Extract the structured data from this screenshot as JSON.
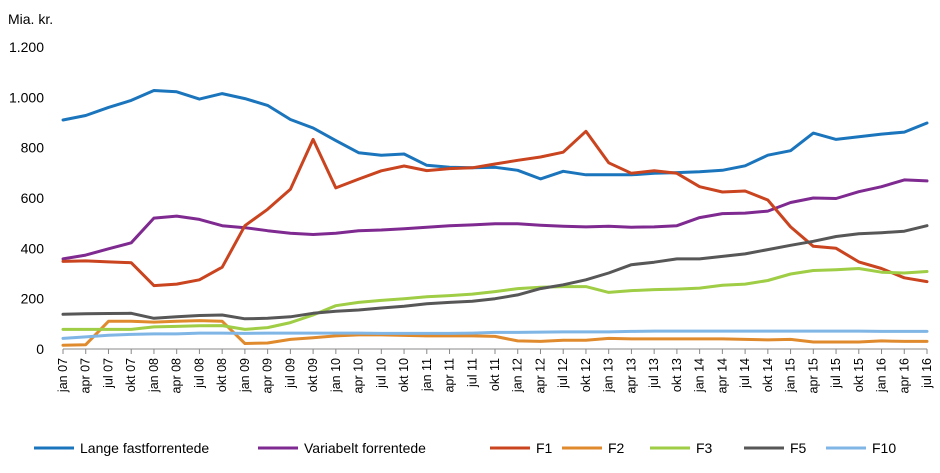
{
  "chart_data": {
    "type": "line",
    "unit_label": "Mia. kr.",
    "ylim": [
      0,
      1200
    ],
    "y_ticks": [
      {
        "value": 0,
        "label": "0"
      },
      {
        "value": 200,
        "label": "200"
      },
      {
        "value": 400,
        "label": "400"
      },
      {
        "value": 600,
        "label": "600"
      },
      {
        "value": 800,
        "label": "800"
      },
      {
        "value": 1000,
        "label": "1.000"
      },
      {
        "value": 1200,
        "label": "1.200"
      }
    ],
    "x": [
      "2007-01",
      "2007-04",
      "2007-07",
      "2007-10",
      "2008-01",
      "2008-04",
      "2008-07",
      "2008-10",
      "2009-01",
      "2009-04",
      "2009-07",
      "2009-10",
      "2010-01",
      "2010-04",
      "2010-07",
      "2010-10",
      "2011-01",
      "2011-04",
      "2011-07",
      "2011-10",
      "2012-01",
      "2012-04",
      "2012-07",
      "2012-10",
      "2013-01",
      "2013-04",
      "2013-07",
      "2013-10",
      "2014-01",
      "2014-04",
      "2014-07",
      "2014-10",
      "2015-01",
      "2015-04",
      "2015-07",
      "2015-10",
      "2016-01",
      "2016-04",
      "2016-07"
    ],
    "x_tick_labels": [
      "jan 07",
      "apr 07",
      "jul 07",
      "okt 07",
      "jan 08",
      "apr 08",
      "jul 08",
      "okt 08",
      "jan 09",
      "apr 09",
      "jul 09",
      "okt 09",
      "jan 10",
      "apr 10",
      "jul 10",
      "okt 10",
      "jan 11",
      "apr 11",
      "jul 11",
      "okt 11",
      "jan 12",
      "apr 12",
      "jul 12",
      "okt 12",
      "jan 13",
      "apr 13",
      "jul 13",
      "okt 13",
      "jan 14",
      "apr 14",
      "jul 14",
      "okt 14",
      "jan 15",
      "apr 15",
      "jul 15",
      "okt 15",
      "jan 16",
      "apr 16",
      "jul 16"
    ],
    "grid": false,
    "legend_position": "bottom",
    "series": [
      {
        "name": "Lange fastforrentede",
        "color": "#1b75bc",
        "values": [
          910,
          928,
          960,
          988,
          1027,
          1022,
          993,
          1015,
          995,
          968,
          912,
          878,
          828,
          780,
          770,
          775,
          730,
          722,
          720,
          722,
          710,
          676,
          706,
          692,
          692,
          692,
          698,
          701,
          704,
          710,
          728,
          770,
          788,
          858,
          833,
          843,
          854,
          862,
          898
        ]
      },
      {
        "name": "Variabelt forrentede",
        "color": "#7f2a90",
        "values": [
          358,
          373,
          398,
          422,
          520,
          528,
          515,
          490,
          482,
          470,
          460,
          455,
          460,
          470,
          473,
          478,
          484,
          490,
          493,
          498,
          498,
          492,
          488,
          485,
          488,
          484,
          485,
          490,
          522,
          538,
          540,
          548,
          582,
          600,
          598,
          625,
          645,
          672,
          668
        ]
      },
      {
        "name": "F1",
        "color": "#c9441f",
        "values": [
          348,
          350,
          346,
          343,
          252,
          258,
          275,
          325,
          490,
          555,
          635,
          833,
          640,
          675,
          708,
          727,
          709,
          717,
          720,
          735,
          750,
          763,
          782,
          865,
          740,
          698,
          708,
          698,
          645,
          624,
          628,
          592,
          485,
          408,
          400,
          346,
          320,
          283,
          268
        ]
      },
      {
        "name": "F2",
        "color": "#e08a2e",
        "values": [
          15,
          17,
          110,
          110,
          107,
          110,
          113,
          110,
          22,
          24,
          38,
          45,
          52,
          56,
          56,
          54,
          52,
          52,
          52,
          50,
          32,
          30,
          35,
          35,
          42,
          40,
          40,
          40,
          40,
          40,
          38,
          36,
          38,
          28,
          28,
          28,
          32,
          30,
          30
        ]
      },
      {
        "name": "F3",
        "color": "#9fcd45",
        "values": [
          78,
          78,
          78,
          78,
          88,
          90,
          92,
          93,
          78,
          85,
          105,
          135,
          172,
          185,
          193,
          200,
          208,
          212,
          218,
          228,
          240,
          245,
          248,
          248,
          225,
          232,
          236,
          238,
          242,
          253,
          258,
          272,
          298,
          312,
          315,
          320,
          305,
          302,
          308
        ]
      },
      {
        "name": "F5",
        "color": "#575757",
        "values": [
          138,
          140,
          141,
          142,
          122,
          128,
          133,
          135,
          120,
          122,
          128,
          142,
          150,
          155,
          163,
          170,
          180,
          185,
          190,
          200,
          215,
          240,
          255,
          275,
          302,
          335,
          345,
          358,
          358,
          368,
          378,
          395,
          412,
          428,
          447,
          458,
          462,
          468,
          490
        ]
      },
      {
        "name": "F10",
        "color": "#7fb6e6",
        "values": [
          42,
          48,
          55,
          58,
          60,
          60,
          63,
          63,
          62,
          63,
          63,
          63,
          63,
          63,
          62,
          62,
          62,
          62,
          63,
          66,
          66,
          67,
          68,
          68,
          68,
          70,
          71,
          71,
          71,
          71,
          71,
          71,
          71,
          71,
          71,
          71,
          70,
          70,
          70
        ]
      }
    ]
  }
}
